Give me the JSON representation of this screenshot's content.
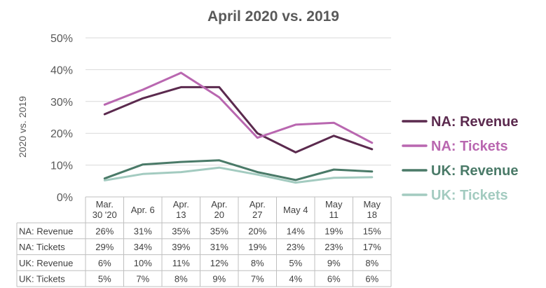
{
  "chart_data": {
    "type": "line",
    "title": "April 2020 vs. 2019",
    "ylabel": "2020 vs. 2019",
    "xlabel": "",
    "ylim": [
      0,
      50
    ],
    "yticks": [
      "0%",
      "10%",
      "20%",
      "30%",
      "40%",
      "50%"
    ],
    "grid": true,
    "legend_position": "right",
    "categories": [
      [
        "Mar.",
        "30 '20"
      ],
      [
        "Apr. 6"
      ],
      [
        "Apr.",
        "13"
      ],
      [
        "Apr.",
        "20"
      ],
      [
        "Apr.",
        "27"
      ],
      [
        "May 4"
      ],
      [
        "May",
        "11"
      ],
      [
        "May",
        "18"
      ]
    ],
    "series": [
      {
        "name": "NA: Revenue",
        "color": "#5b2a4e",
        "values": [
          26,
          31,
          34.5,
          34.5,
          20,
          14,
          19.2,
          15
        ],
        "table": [
          "26%",
          "31%",
          "35%",
          "35%",
          "20%",
          "14%",
          "19%",
          "15%"
        ]
      },
      {
        "name": "NA: Tickets",
        "color": "#b967b0",
        "values": [
          29,
          33.7,
          39,
          31.3,
          18.6,
          22.7,
          23.3,
          17
        ],
        "table": [
          "29%",
          "34%",
          "39%",
          "31%",
          "19%",
          "23%",
          "23%",
          "17%"
        ]
      },
      {
        "name": "UK: Revenue",
        "color": "#4a7a68",
        "values": [
          5.8,
          10.2,
          11,
          11.5,
          7.8,
          5.3,
          8.6,
          8
        ],
        "table": [
          "6%",
          "10%",
          "11%",
          "12%",
          "8%",
          "5%",
          "9%",
          "8%"
        ]
      },
      {
        "name": "UK: Tickets",
        "color": "#a3cbc0",
        "values": [
          5.2,
          7.2,
          7.8,
          9.2,
          7,
          4.5,
          6,
          6.2
        ],
        "table": [
          "5%",
          "7%",
          "8%",
          "9%",
          "7%",
          "4%",
          "6%",
          "6%"
        ]
      }
    ]
  }
}
